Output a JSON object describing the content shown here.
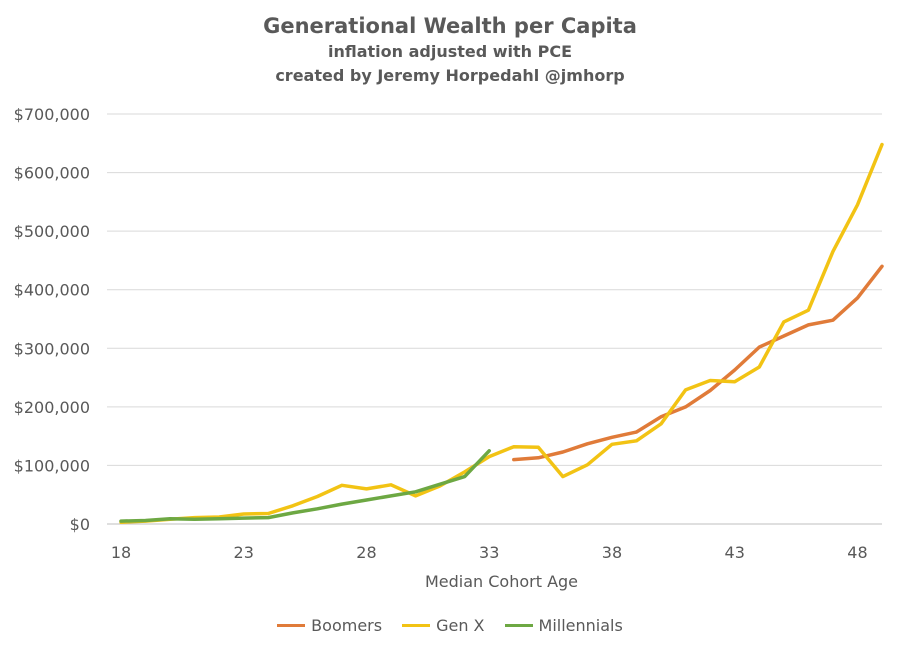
{
  "chart_data": {
    "type": "line",
    "title": "Generational Wealth per Capita",
    "subtitle_lines": [
      "inflation adjusted with PCE",
      "created by Jeremy Horpedahl @jmhorp"
    ],
    "xlabel": "Median Cohort Age",
    "ylabel": "",
    "xlim": [
      18,
      49
    ],
    "ylim": [
      0,
      700000
    ],
    "x_ticks": [
      18,
      23,
      28,
      33,
      38,
      43,
      48
    ],
    "y_ticks": [
      0,
      100000,
      200000,
      300000,
      400000,
      500000,
      600000,
      700000
    ],
    "y_tick_labels": [
      "$0",
      "$100,000",
      "$200,000",
      "$300,000",
      "$400,000",
      "$500,000",
      "$600,000",
      "$700,000"
    ],
    "grid": "horizontal",
    "legend_position": "bottom",
    "series": [
      {
        "name": "Boomers",
        "color": "#E07B39",
        "x": [
          34,
          35,
          36,
          37,
          38,
          39,
          40,
          41,
          42,
          43,
          44,
          45,
          46,
          47,
          48,
          49
        ],
        "y": [
          110000,
          113000,
          123000,
          137000,
          148000,
          157000,
          183000,
          200000,
          228000,
          263000,
          302000,
          321000,
          340000,
          348000,
          386000,
          440000
        ]
      },
      {
        "name": "Gen X",
        "color": "#F2C314",
        "x": [
          18,
          19,
          20,
          21,
          22,
          23,
          24,
          25,
          26,
          27,
          28,
          29,
          30,
          31,
          32,
          33,
          34,
          35,
          36,
          37,
          38,
          39,
          40,
          41,
          42,
          43,
          44,
          45,
          46,
          47,
          48,
          49
        ],
        "y": [
          3000,
          5000,
          8000,
          11000,
          12000,
          17000,
          18000,
          31000,
          47000,
          66000,
          60000,
          67000,
          48000,
          65000,
          89000,
          115000,
          132000,
          131000,
          81000,
          101000,
          136000,
          142000,
          171000,
          229000,
          245000,
          243000,
          268000,
          345000,
          365000,
          465000,
          545000,
          648000
        ]
      },
      {
        "name": "Millennials",
        "color": "#6DA843",
        "x": [
          18,
          19,
          20,
          21,
          22,
          23,
          24,
          25,
          26,
          27,
          28,
          29,
          30,
          31,
          32,
          33
        ],
        "y": [
          5000,
          6000,
          9000,
          8000,
          9000,
          10000,
          11000,
          19000,
          26000,
          34000,
          41000,
          48000,
          55000,
          68000,
          81000,
          125000
        ]
      }
    ]
  }
}
